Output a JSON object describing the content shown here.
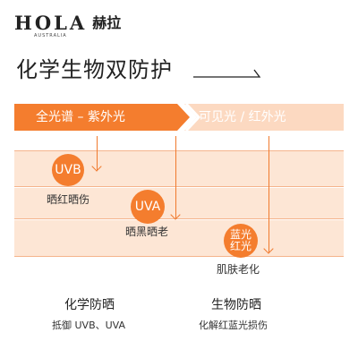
{
  "brand": {
    "name": "HOLA",
    "name_cn": "赫拉",
    "tagline": "AUSTRALIA"
  },
  "title": "化学生物双防护",
  "spectrum": {
    "left": "全光谱 – 紫外光",
    "right": "可见光 / 红外光"
  },
  "bands": [
    {
      "badge": "UVB",
      "caption": "晒红晒伤"
    },
    {
      "badge": "UVA",
      "caption": "晒黑晒老"
    },
    {
      "badge_lines": [
        "蓝光",
        "红光"
      ],
      "caption": "肌肤老化"
    }
  ],
  "columns": [
    {
      "title": "化学防晒",
      "subtitle": "抵御 UVB、UVA"
    },
    {
      "title": "生物防晒",
      "subtitle": "化解红蓝光损伤"
    }
  ],
  "colors": {
    "accent": "#f47d2e",
    "band": "#fde6d5"
  }
}
